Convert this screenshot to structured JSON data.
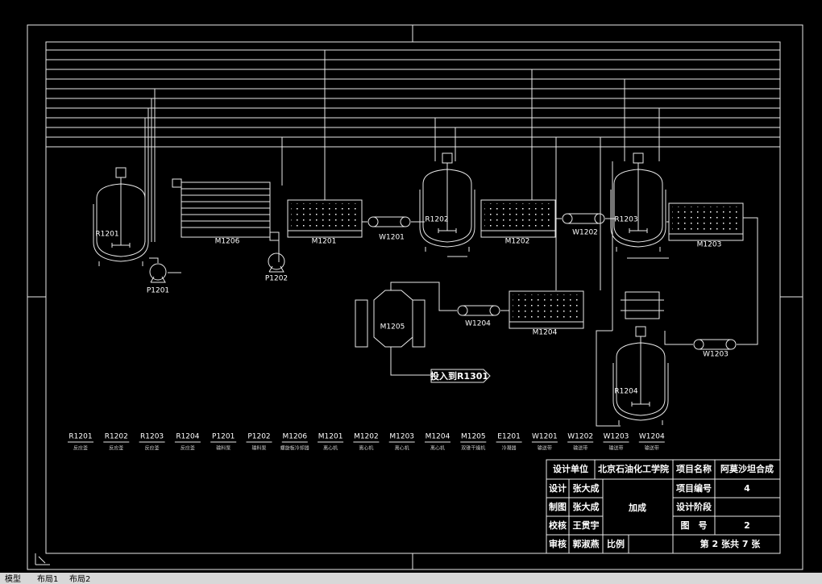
{
  "equipment_labels": [
    "R1201",
    "M1206",
    "P1201",
    "P1202",
    "M1201",
    "W1201",
    "R1202",
    "M1202",
    "W1202",
    "R1203",
    "M1203",
    "M1205",
    "W1204",
    "M1204",
    "W1203",
    "R1204",
    "投入到R1301"
  ],
  "legend": [
    {
      "code": "R1201",
      "desc": "反应釜"
    },
    {
      "code": "R1202",
      "desc": "反应釜"
    },
    {
      "code": "R1203",
      "desc": "反应釜"
    },
    {
      "code": "R1204",
      "desc": "反应釜"
    },
    {
      "code": "P1201",
      "desc": "输料泵"
    },
    {
      "code": "P1202",
      "desc": "输料泵"
    },
    {
      "code": "M1206",
      "desc": "螺旋板冷却器"
    },
    {
      "code": "M1201",
      "desc": "离心机"
    },
    {
      "code": "M1202",
      "desc": "离心机"
    },
    {
      "code": "M1203",
      "desc": "离心机"
    },
    {
      "code": "M1204",
      "desc": "离心机"
    },
    {
      "code": "M1205",
      "desc": "双锥干燥机"
    },
    {
      "code": "E1201",
      "desc": "冷凝器"
    },
    {
      "code": "W1201",
      "desc": "输送带"
    },
    {
      "code": "W1202",
      "desc": "输送带"
    },
    {
      "code": "W1203",
      "desc": "输送带"
    },
    {
      "code": "W1204",
      "desc": "输送带"
    }
  ],
  "title_block": {
    "design_unit_label": "设计单位",
    "design_unit": "北京石油化工学院",
    "project_name_label": "项目名称",
    "project_name": "阿莫沙坦合成",
    "designer_label": "设计",
    "designer": "张大成",
    "project_no_label": "项目编号",
    "project_no": "4",
    "drafter_label": "制图",
    "drafter": "张大成",
    "drawing_name": "加成",
    "stage_label": "设计阶段",
    "checker_label": "校核",
    "checker": "王贯宇",
    "drawing_no_label": "图　号",
    "drawing_no": "2",
    "reviewer_label": "审核",
    "reviewer": "郭淑燕",
    "scale_label": "比例",
    "sheet": "第 2 张共 7 张"
  },
  "tabs": [
    "模型",
    "布局1",
    "布局2"
  ]
}
